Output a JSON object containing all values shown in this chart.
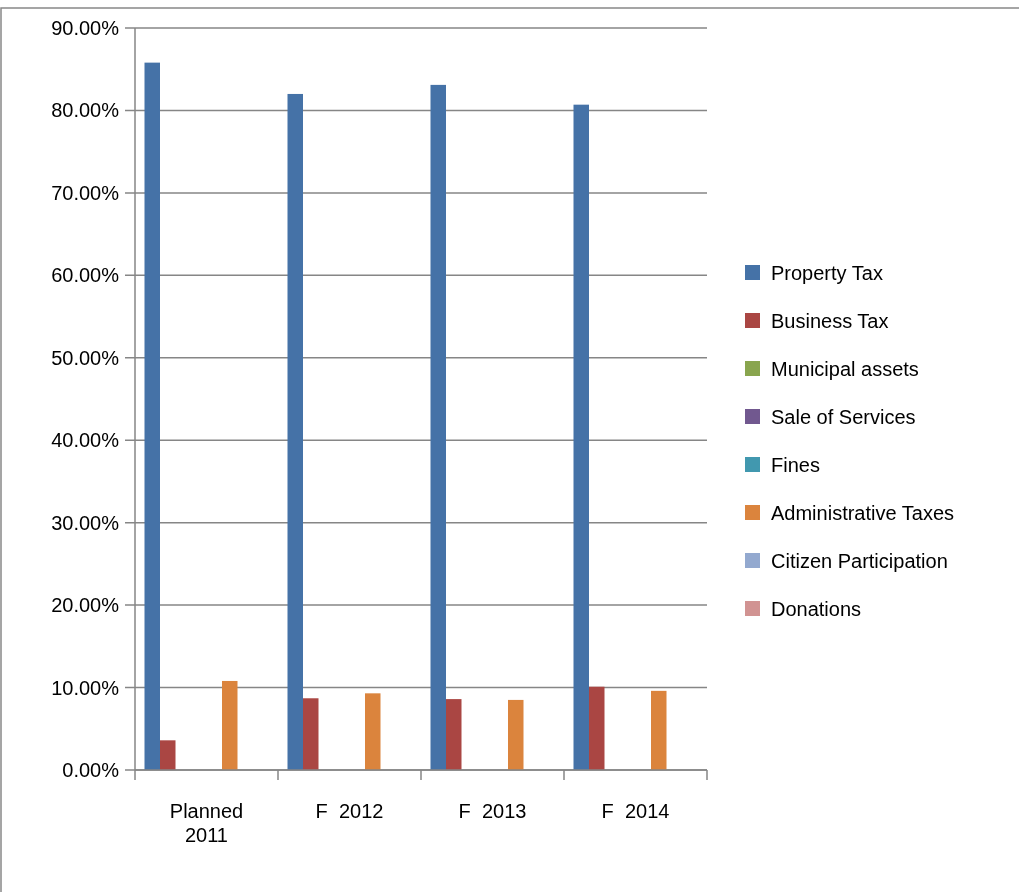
{
  "chart_data": {
    "type": "bar",
    "categories": [
      "Planned 2011",
      "F  2012",
      "F  2013",
      "F  2014"
    ],
    "series": [
      {
        "name": "Property Tax",
        "color": "#4572a7",
        "values": [
          85.8,
          82.0,
          83.1,
          80.7
        ]
      },
      {
        "name": "Business Tax",
        "color": "#aa4643",
        "values": [
          3.6,
          8.7,
          8.6,
          10.1
        ]
      },
      {
        "name": "Municipal assets",
        "color": "#89a54e",
        "values": [
          0,
          0,
          0,
          0
        ]
      },
      {
        "name": "Sale of Services",
        "color": "#71588f",
        "values": [
          0,
          0,
          0,
          0
        ]
      },
      {
        "name": "Fines",
        "color": "#4198af",
        "values": [
          0,
          0,
          0,
          0
        ]
      },
      {
        "name": "Administrative Taxes",
        "color": "#db843d",
        "values": [
          10.8,
          9.3,
          8.5,
          9.6
        ]
      },
      {
        "name": "Citizen Participation",
        "color": "#93a9cf",
        "values": [
          0,
          0,
          0,
          0
        ]
      },
      {
        "name": "Donations",
        "color": "#d19392",
        "values": [
          0,
          0,
          0,
          0
        ]
      }
    ],
    "ylim": [
      0,
      90
    ],
    "yticks": [
      {
        "value": 0,
        "label": "0.00%"
      },
      {
        "value": 10,
        "label": "10.00%"
      },
      {
        "value": 20,
        "label": "20.00%"
      },
      {
        "value": 30,
        "label": "30.00%"
      },
      {
        "value": 40,
        "label": "40.00%"
      },
      {
        "value": 50,
        "label": "50.00%"
      },
      {
        "value": 60,
        "label": "60.00%"
      },
      {
        "value": 70,
        "label": "70.00%"
      },
      {
        "value": 80,
        "label": "80.00%"
      },
      {
        "value": 90,
        "label": "90.00%"
      }
    ],
    "grid": "y",
    "legend": "right"
  }
}
